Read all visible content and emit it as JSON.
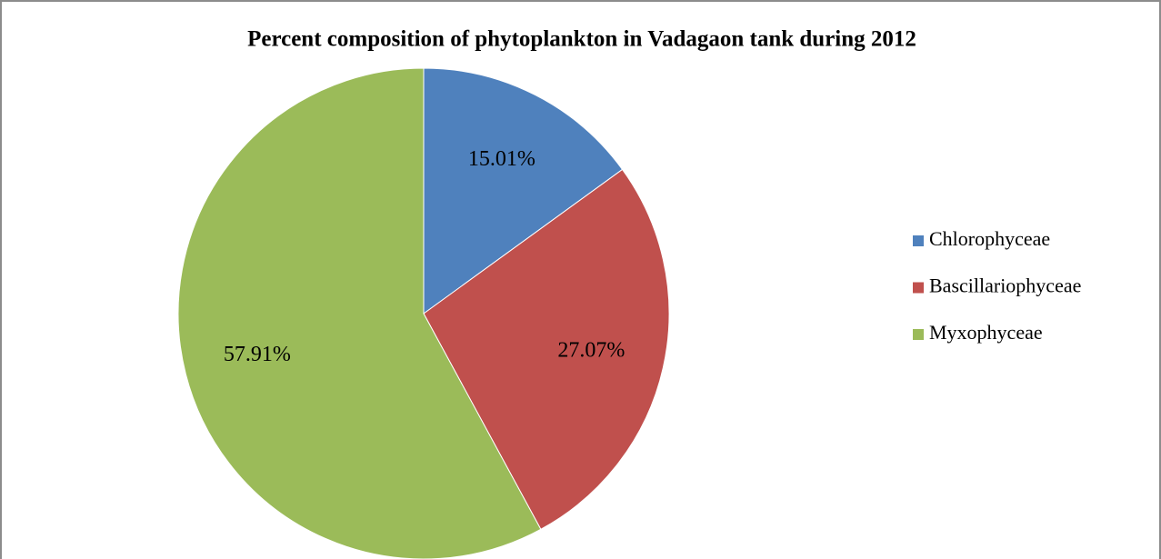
{
  "chart_data": {
    "type": "pie",
    "title": "Percent composition of phytoplankton in Vadagaon tank during 2012",
    "categories": [
      "Chlorophyceae",
      "Bascillariophyceae",
      "Myxophyceae"
    ],
    "values": [
      15.01,
      27.07,
      57.91
    ],
    "value_labels": [
      "15.01%",
      "27.07%",
      "57.91%"
    ],
    "colors": [
      "#4f81bd",
      "#c0504d",
      "#9bbb59"
    ],
    "legend": "right"
  }
}
